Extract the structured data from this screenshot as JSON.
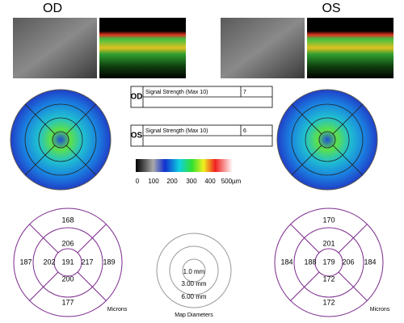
{
  "eyes": [
    {
      "heading": "OD",
      "signal": {
        "eye": "OD",
        "label": "Signal Strength (Max 10)",
        "value": 7
      },
      "grid": {
        "outer_superior": 168,
        "inner_superior": 206,
        "center": 191,
        "inner_left": 202,
        "inner_right": 217,
        "outer_left": 187,
        "outer_right": 189,
        "inner_inferior": 200,
        "outer_inferior": 177,
        "units": "Microns"
      }
    },
    {
      "heading": "OS",
      "signal": {
        "eye": "OS",
        "label": "Signal Strength (Max 10)",
        "value": 6
      },
      "grid": {
        "outer_superior": 170,
        "inner_superior": 201,
        "center": 179,
        "inner_left": 188,
        "inner_right": 206,
        "outer_left": 184,
        "outer_right": 184,
        "inner_inferior": 172,
        "outer_inferior": 172,
        "units": "Microns"
      }
    }
  ],
  "scale": {
    "ticks": [
      "0",
      "100",
      "200",
      "300",
      "400",
      "500µm"
    ]
  },
  "map": {
    "diameters": [
      "1.0 mm",
      "3.00 mm",
      "6.00 mm"
    ],
    "caption": "Map Diameters"
  }
}
